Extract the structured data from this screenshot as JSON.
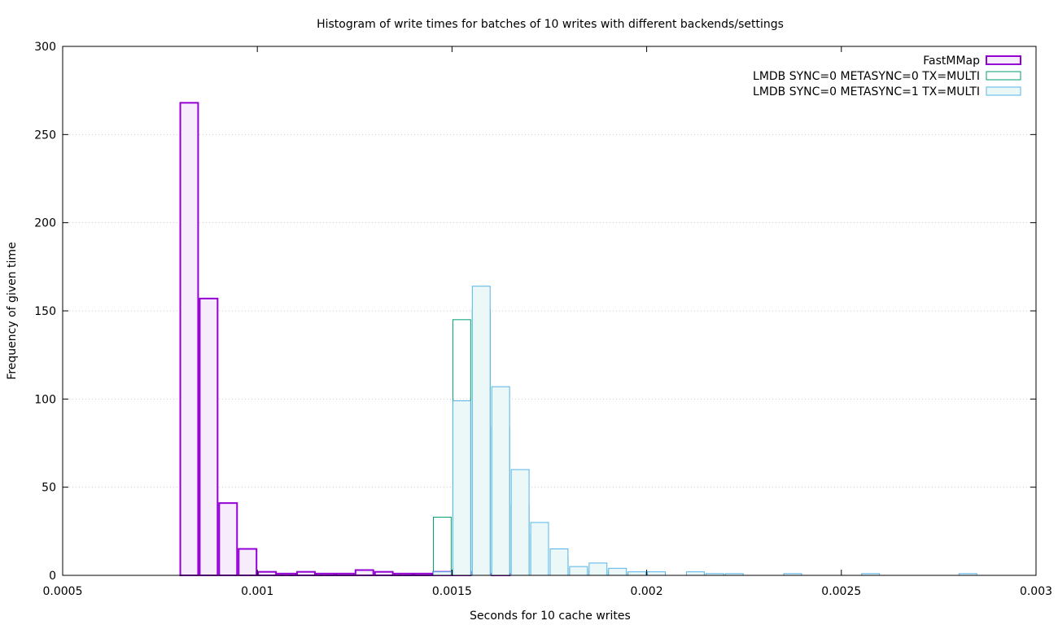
{
  "chart_data": {
    "type": "bar",
    "title": "Histogram of write times for batches of 10 writes with different backends/settings",
    "xlabel": "Seconds for 10 cache writes",
    "ylabel": "Frequency of given time",
    "xlim": [
      0.0005,
      0.003
    ],
    "ylim": [
      0,
      300
    ],
    "xticks": [
      "0.0005",
      "0.001",
      "0.0015",
      "0.002",
      "0.0025",
      "0.003"
    ],
    "yticks": [
      "0",
      "50",
      "100",
      "150",
      "200",
      "250",
      "300"
    ],
    "grid": true,
    "legend_position": "top-right",
    "bin_width": 5e-05,
    "series": [
      {
        "name": "FastMMap",
        "color": "#9400d3",
        "fill": "#f7ecfb",
        "bins": [
          [
            0.000825,
            268
          ],
          [
            0.000875,
            157
          ],
          [
            0.000925,
            41
          ],
          [
            0.000975,
            15
          ],
          [
            0.001025,
            2
          ],
          [
            0.001075,
            1
          ],
          [
            0.001125,
            2
          ],
          [
            0.001175,
            1
          ],
          [
            0.001225,
            1
          ],
          [
            0.001275,
            3
          ],
          [
            0.001325,
            2
          ],
          [
            0.001375,
            1
          ],
          [
            0.001425,
            1
          ],
          [
            0.001475,
            2
          ],
          [
            0.001525,
            2
          ],
          [
            0.001625,
            1
          ]
        ]
      },
      {
        "name": "LMDB SYNC=0 METASYNC=0 TX=MULTI",
        "color": "#009e73",
        "fill": "none",
        "bins": [
          [
            0.001475,
            33
          ],
          [
            0.001525,
            145
          ],
          [
            0.001575,
            151
          ],
          [
            0.001625,
            84
          ],
          [
            0.001675,
            40
          ],
          [
            0.001725,
            23
          ],
          [
            0.001775,
            10
          ],
          [
            0.001825,
            4
          ],
          [
            0.001875,
            3
          ],
          [
            0.001925,
            2
          ],
          [
            0.001975,
            1
          ],
          [
            0.002025,
            1
          ]
        ]
      },
      {
        "name": "LMDB SYNC=0 METASYNC=1 TX=MULTI",
        "color": "#56b4e9",
        "fill": "#ecf7f7",
        "bins": [
          [
            0.001475,
            2
          ],
          [
            0.001525,
            99
          ],
          [
            0.001575,
            164
          ],
          [
            0.001625,
            107
          ],
          [
            0.001675,
            60
          ],
          [
            0.001725,
            30
          ],
          [
            0.001775,
            15
          ],
          [
            0.001825,
            5
          ],
          [
            0.001875,
            7
          ],
          [
            0.001925,
            4
          ],
          [
            0.001975,
            2
          ],
          [
            0.002025,
            2
          ],
          [
            0.002125,
            2
          ],
          [
            0.002175,
            1
          ],
          [
            0.002225,
            1
          ],
          [
            0.002375,
            1
          ],
          [
            0.002575,
            1
          ],
          [
            0.002825,
            1
          ]
        ]
      }
    ]
  }
}
